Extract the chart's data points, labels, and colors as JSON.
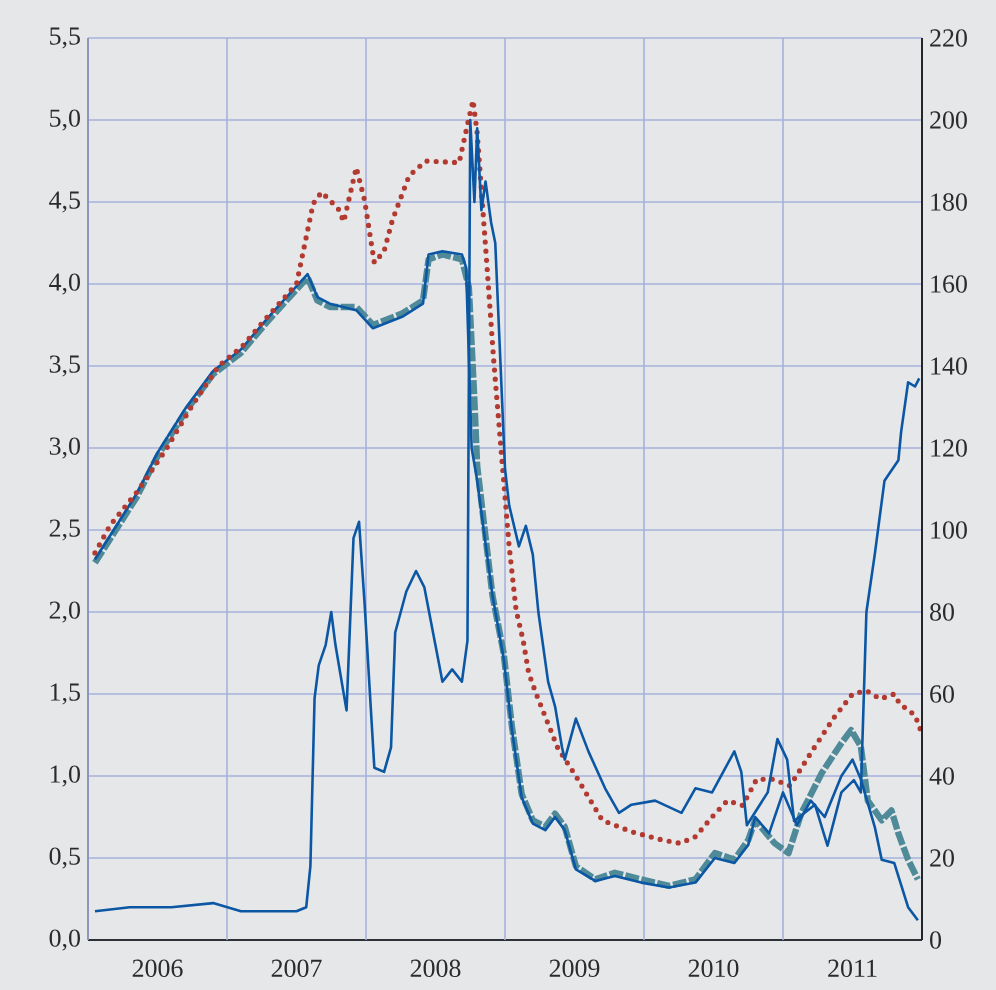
{
  "chart_data": {
    "type": "line",
    "xlim": [
      2006,
      2012
    ],
    "xticks": [
      {
        "value": 2006,
        "label": null
      },
      {
        "value": 2007,
        "label": null
      },
      {
        "value": 2008,
        "label": null
      },
      {
        "value": 2009,
        "label": null
      },
      {
        "value": 2010,
        "label": null
      },
      {
        "value": 2011,
        "label": null
      },
      {
        "value": 2012,
        "label": null
      },
      {
        "value": 2006.5,
        "label": "2006"
      },
      {
        "value": 2007.5,
        "label": "2007"
      },
      {
        "value": 2008.5,
        "label": "2008"
      },
      {
        "value": 2009.5,
        "label": "2009"
      },
      {
        "value": 2010.5,
        "label": "2010"
      },
      {
        "value": 2011.5,
        "label": "2011"
      }
    ],
    "ylim": [
      0,
      5.5
    ],
    "yticks": [
      {
        "value": 0,
        "label": "0,0"
      },
      {
        "value": 0.5,
        "label": "0,5"
      },
      {
        "value": 1,
        "label": "1,0"
      },
      {
        "value": 1.5,
        "label": "1,5"
      },
      {
        "value": 2,
        "label": "2,0"
      },
      {
        "value": 2.5,
        "label": "2,5"
      },
      {
        "value": 3,
        "label": "3,0"
      },
      {
        "value": 3.5,
        "label": "3,5"
      },
      {
        "value": 4,
        "label": "4,0"
      },
      {
        "value": 4.5,
        "label": "4,5"
      },
      {
        "value": 5,
        "label": "5,0"
      },
      {
        "value": 5.5,
        "label": "5,5"
      }
    ],
    "y2lim": [
      0,
      220
    ],
    "y2ticks": [
      0,
      20,
      40,
      60,
      80,
      100,
      120,
      140,
      160,
      180,
      200,
      220
    ],
    "grid": true,
    "series": [
      {
        "color": "#4f8a99",
        "line_style": "dashed",
        "x": [
          2006.05,
          2006.2,
          2006.35,
          2006.5,
          2006.7,
          2006.9,
          2007.1,
          2007.3,
          2007.45,
          2007.58,
          2007.65,
          2007.74,
          2007.93,
          2008.05,
          2008.26,
          2008.41,
          2008.45,
          2008.55,
          2008.69,
          2008.74,
          2008.78,
          2008.8,
          2008.91,
          2008.99,
          2009.05,
          2009.12,
          2009.2,
          2009.29,
          2009.36,
          2009.43,
          2009.51,
          2009.65,
          2009.79,
          2009.98,
          2010.18,
          2010.37,
          2010.51,
          2010.65,
          2010.75,
          2010.8,
          2010.94,
          2011.04,
          2011.13,
          2011.28,
          2011.42,
          2011.49,
          2011.56,
          2011.61,
          2011.71,
          2011.78,
          2011.83,
          2011.9,
          2011.97
        ],
        "values": [
          2.3,
          2.5,
          2.7,
          2.95,
          3.22,
          3.45,
          3.58,
          3.78,
          3.92,
          4.04,
          3.9,
          3.86,
          3.86,
          3.75,
          3.82,
          3.9,
          4.15,
          4.18,
          4.15,
          3.98,
          3.29,
          2.89,
          2.1,
          1.75,
          1.3,
          0.89,
          0.73,
          0.69,
          0.77,
          0.69,
          0.45,
          0.37,
          0.41,
          0.37,
          0.33,
          0.37,
          0.53,
          0.49,
          0.61,
          0.73,
          0.59,
          0.53,
          0.77,
          1.02,
          1.2,
          1.28,
          1.18,
          0.85,
          0.73,
          0.79,
          0.65,
          0.49,
          0.37
        ]
      },
      {
        "color": "#0b57a4",
        "line_style": "solid",
        "x": [
          2006.05,
          2006.2,
          2006.35,
          2006.5,
          2006.7,
          2006.9,
          2007.1,
          2007.3,
          2007.45,
          2007.58,
          2007.65,
          2007.74,
          2007.93,
          2008.05,
          2008.26,
          2008.41,
          2008.45,
          2008.55,
          2008.69,
          2008.72,
          2008.76,
          2008.8,
          2008.91,
          2008.99,
          2009.05,
          2009.12,
          2009.2,
          2009.29,
          2009.36,
          2009.43,
          2009.51,
          2009.65,
          2009.79,
          2009.98,
          2010.18,
          2010.37,
          2010.51,
          2010.65,
          2010.75,
          2010.8,
          2010.9,
          2011.0,
          2011.1,
          2011.2,
          2011.3,
          2011.42,
          2011.5,
          2011.56,
          2011.66,
          2011.71,
          2011.8,
          2011.9,
          2011.97
        ],
        "values": [
          2.32,
          2.52,
          2.72,
          2.97,
          3.24,
          3.47,
          3.6,
          3.8,
          3.94,
          4.06,
          3.92,
          3.88,
          3.84,
          3.73,
          3.8,
          3.88,
          4.18,
          4.2,
          4.18,
          4.1,
          3.0,
          2.8,
          2.1,
          1.72,
          1.28,
          0.87,
          0.71,
          0.67,
          0.75,
          0.67,
          0.43,
          0.36,
          0.39,
          0.35,
          0.32,
          0.35,
          0.5,
          0.47,
          0.58,
          0.75,
          0.65,
          0.9,
          0.7,
          0.85,
          0.75,
          1.0,
          1.1,
          0.98,
          0.69,
          0.49,
          0.47,
          0.2,
          0.12
        ]
      },
      {
        "color": "#b23a30",
        "line_style": "dotted",
        "x": [
          2006.05,
          2006.16,
          2006.36,
          2006.56,
          2006.75,
          2006.94,
          2007.11,
          2007.27,
          2007.5,
          2007.62,
          2007.68,
          2007.8,
          2007.84,
          2007.93,
          2007.99,
          2008.06,
          2008.13,
          2008.19,
          2008.31,
          2008.43,
          2008.67,
          2008.74,
          2008.77,
          2008.8,
          2008.86,
          2008.92,
          2008.96,
          2009.03,
          2009.08,
          2009.13,
          2009.17,
          2009.22,
          2009.3,
          2009.38,
          2009.51,
          2009.7,
          2009.91,
          2010.13,
          2010.26,
          2010.37,
          2010.51,
          2010.6,
          2010.71,
          2010.81,
          2010.93,
          2011.05,
          2011.11,
          2011.23,
          2011.37,
          2011.5,
          2011.6,
          2011.7,
          2011.8,
          2011.84,
          2011.95,
          2011.99
        ],
        "values": [
          2.36,
          2.53,
          2.74,
          2.99,
          3.26,
          3.5,
          3.62,
          3.78,
          4.0,
          4.49,
          4.56,
          4.46,
          4.38,
          4.71,
          4.51,
          4.13,
          4.2,
          4.39,
          4.66,
          4.75,
          4.74,
          5.01,
          5.12,
          4.92,
          4.23,
          3.52,
          3.11,
          2.4,
          2.01,
          1.83,
          1.63,
          1.51,
          1.34,
          1.17,
          1.0,
          0.73,
          0.66,
          0.61,
          0.59,
          0.63,
          0.77,
          0.85,
          0.82,
          0.98,
          0.98,
          0.94,
          1.02,
          1.18,
          1.36,
          1.5,
          1.52,
          1.47,
          1.5,
          1.44,
          1.37,
          1.28
        ]
      },
      {
        "color": "#0b57a4",
        "line_style": "solid",
        "axis": "y2",
        "x": [
          2006.05,
          2006.3,
          2006.6,
          2006.9,
          2007.1,
          2007.3,
          2007.5,
          2007.57,
          2007.6,
          2007.63,
          2007.66,
          2007.71,
          2007.75,
          2007.78,
          2007.86,
          2007.91,
          2007.95,
          2007.99,
          2008.06,
          2008.13,
          2008.18,
          2008.21,
          2008.29,
          2008.36,
          2008.42,
          2008.55,
          2008.62,
          2008.69,
          2008.73,
          2008.75,
          2008.78,
          2008.8,
          2008.83,
          2008.86,
          2008.9,
          2008.93,
          2009.0,
          2009.03,
          2009.1,
          2009.15,
          2009.2,
          2009.24,
          2009.31,
          2009.36,
          2009.41,
          2009.43,
          2009.51,
          2009.6,
          2009.72,
          2009.82,
          2009.91,
          2010.08,
          2010.27,
          2010.37,
          2010.49,
          2010.65,
          2010.7,
          2010.74,
          2010.89,
          2010.96,
          2011.03,
          2011.08,
          2011.23,
          2011.32,
          2011.42,
          2011.51,
          2011.56,
          2011.6,
          2011.66,
          2011.73,
          2011.83,
          2011.85,
          2011.9,
          2011.95,
          2011.98
        ],
        "values": [
          7,
          8,
          8,
          9,
          7,
          7,
          7,
          8,
          18,
          59,
          67,
          72,
          80,
          72,
          56,
          98,
          102,
          82,
          42,
          41,
          47,
          75,
          85,
          90,
          86,
          63,
          66,
          63,
          73,
          200,
          180,
          198,
          178,
          185,
          175,
          170,
          115,
          106,
          96,
          101,
          94,
          80,
          63,
          57,
          47,
          44,
          54,
          46,
          37,
          31,
          33,
          34,
          31,
          37,
          36,
          46,
          41,
          28,
          36,
          49,
          44,
          29,
          33,
          23,
          36,
          39,
          36,
          80,
          94,
          112,
          117,
          124,
          136,
          135,
          137
        ]
      }
    ]
  }
}
